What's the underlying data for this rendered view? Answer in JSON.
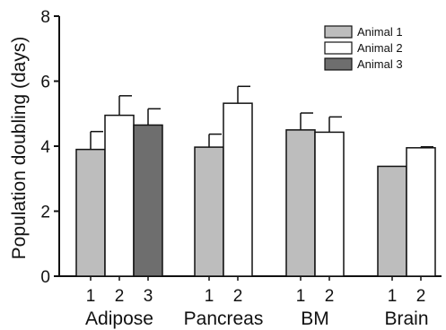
{
  "chart_data": {
    "type": "bar",
    "title": "",
    "xlabel": "",
    "ylabel": "Population doubling (days)",
    "ylim": [
      0,
      8
    ],
    "yticks": [
      "0",
      "2",
      "4",
      "6",
      "8"
    ],
    "grid": false,
    "legend_position": "top-right",
    "series": [
      {
        "name": "Animal 1",
        "color": "#bdbdbd"
      },
      {
        "name": "Animal 2",
        "color": "#ffffff"
      },
      {
        "name": "Animal 3",
        "color": "#6e6e6e"
      }
    ],
    "groups": [
      {
        "label": "Adipose",
        "bars": [
          {
            "label": "1",
            "series": 0,
            "value": 3.9,
            "error": 0.55
          },
          {
            "label": "2",
            "series": 1,
            "value": 4.95,
            "error": 0.6
          },
          {
            "label": "3",
            "series": 2,
            "value": 4.65,
            "error": 0.5
          }
        ]
      },
      {
        "label": "Pancreas",
        "bars": [
          {
            "label": "1",
            "series": 0,
            "value": 3.97,
            "error": 0.4
          },
          {
            "label": "2",
            "series": 1,
            "value": 5.32,
            "error": 0.52
          }
        ]
      },
      {
        "label": "BM",
        "bars": [
          {
            "label": "1",
            "series": 0,
            "value": 4.5,
            "error": 0.52
          },
          {
            "label": "2",
            "series": 1,
            "value": 4.43,
            "error": 0.47
          }
        ]
      },
      {
        "label": "Brain",
        "bars": [
          {
            "label": "1",
            "series": 0,
            "value": 3.38,
            "error": 0
          },
          {
            "label": "2",
            "series": 1,
            "value": 3.95,
            "error": 0.03
          }
        ]
      }
    ]
  }
}
